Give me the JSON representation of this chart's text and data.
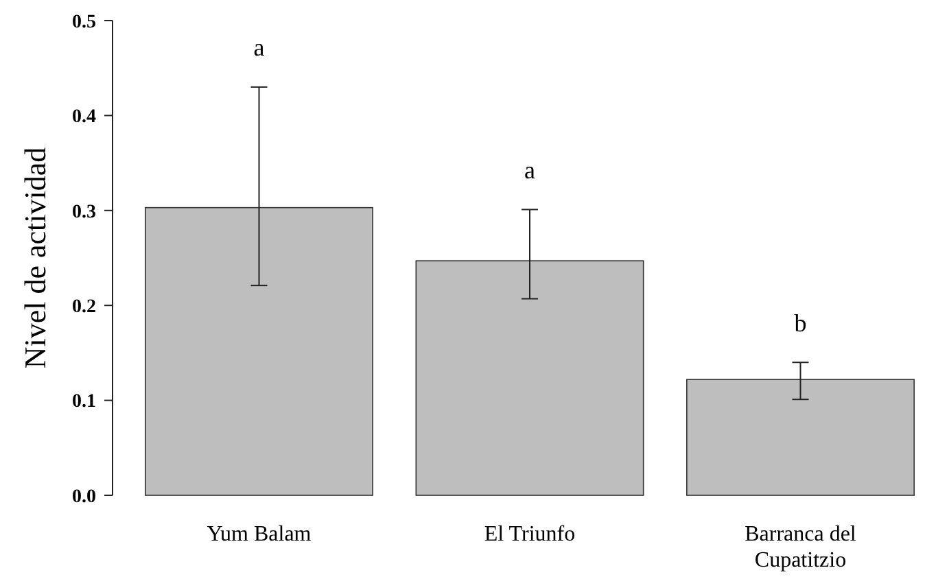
{
  "chart_data": {
    "type": "bar",
    "ylabel": "Nivel de actividad",
    "categories": [
      "Yum Balam",
      "El Triunfo",
      "Barranca del Cupatitzio"
    ],
    "values": [
      0.303,
      0.247,
      0.122
    ],
    "errors": [
      [
        0.221,
        0.43
      ],
      [
        0.207,
        0.301
      ],
      [
        0.101,
        0.14
      ]
    ],
    "color": "#bebebe",
    "ylim": [
      0,
      0.5
    ],
    "yticks": [
      {
        "value": 0,
        "label": "0.0"
      },
      {
        "value": 0.1,
        "label": "0.1"
      },
      {
        "value": 0.2,
        "label": "0.2"
      },
      {
        "value": 0.3,
        "label": "0.3"
      },
      {
        "value": 0.4,
        "label": "0.4"
      },
      {
        "value": 0.5,
        "label": "0.5"
      }
    ],
    "annotations": [
      "a",
      "a",
      "b"
    ]
  }
}
